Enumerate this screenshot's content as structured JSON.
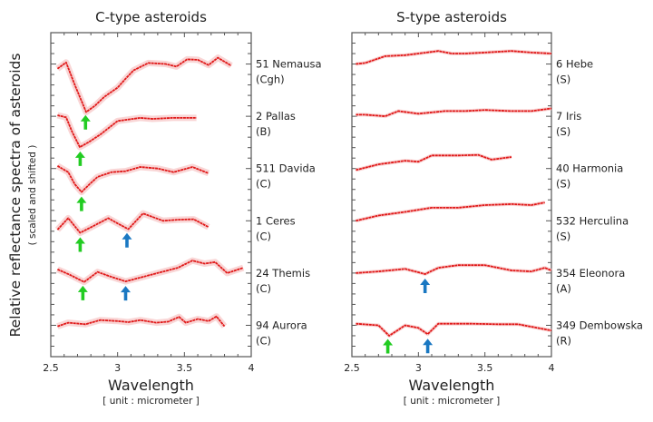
{
  "y_axis": {
    "label": "Relative reflectance spectra of asteroids",
    "sublabel": "( scaled and shifted )"
  },
  "colors": {
    "spectrum": "#e01818",
    "error": "#f7c4c4",
    "arrow_2_7um": "#22cc22",
    "arrow_3_1um": "#1a78c2",
    "axis": "#555555"
  },
  "chart_data": [
    {
      "type": "line",
      "title": "C-type asteroids",
      "xlabel": "Wavelength",
      "xunit": "[ unit : micrometer ]",
      "xlim": [
        2.5,
        4
      ],
      "xticks": [
        "2.5",
        "3",
        "3.5",
        "4"
      ],
      "ylim": [
        -0.6,
        5.6
      ],
      "series": [
        {
          "name": "51 Nemausa",
          "class": "(Cgh)",
          "offset": 5,
          "x": [
            2.55,
            2.615,
            2.68,
            2.765,
            2.83,
            2.9,
            3.0,
            3.06,
            3.12,
            3.23,
            3.36,
            3.44,
            3.52,
            3.6,
            3.68,
            3.75,
            3.85
          ],
          "y": [
            -0.09,
            0.03,
            -0.4,
            -0.92,
            -0.8,
            -0.63,
            -0.45,
            -0.28,
            -0.12,
            0.02,
            0,
            -0.05,
            0.09,
            0.08,
            -0.02,
            0.12,
            -0.03
          ],
          "arrows": [
            {
              "x": 2.76,
              "type": "green"
            }
          ]
        },
        {
          "name": "2 Pallas",
          "class": "(B)",
          "offset": 4,
          "x": [
            2.55,
            2.615,
            2.66,
            2.717,
            2.78,
            2.87,
            3.0,
            3.17,
            3.26,
            3.41,
            3.59
          ],
          "y": [
            0.02,
            -0.02,
            -0.3,
            -0.59,
            -0.5,
            -0.35,
            -0.09,
            -0.03,
            -0.05,
            -0.03,
            -0.03
          ],
          "arrows": [
            {
              "x": 2.72,
              "type": "green"
            }
          ]
        },
        {
          "name": "511 Davida",
          "class": "(C)",
          "offset": 3,
          "x": [
            2.55,
            2.63,
            2.68,
            2.73,
            2.79,
            2.85,
            2.955,
            3.06,
            3.17,
            3.3,
            3.42,
            3.56,
            3.68
          ],
          "y": [
            0.05,
            -0.07,
            -0.3,
            -0.45,
            -0.3,
            -0.16,
            -0.07,
            -0.05,
            0.03,
            0,
            -0.07,
            0.03,
            -0.09
          ],
          "arrows": [
            {
              "x": 2.73,
              "type": "green"
            }
          ]
        },
        {
          "name": "1 Ceres",
          "class": "(C)",
          "offset": 2,
          "x": [
            2.55,
            2.63,
            2.72,
            2.82,
            2.93,
            3.0,
            3.08,
            3.19,
            3.34,
            3.45,
            3.57,
            3.68
          ],
          "y": [
            -0.17,
            0.05,
            -0.23,
            -0.1,
            0.05,
            -0.05,
            -0.16,
            0.14,
            0,
            0.02,
            0.03,
            -0.12
          ],
          "arrows": [
            {
              "x": 2.72,
              "type": "green"
            },
            {
              "x": 3.07,
              "type": "blue"
            }
          ]
        },
        {
          "name": "24 Themis",
          "class": "(C)",
          "offset": 1,
          "x": [
            2.55,
            2.64,
            2.75,
            2.85,
            2.95,
            3.06,
            3.27,
            3.45,
            3.56,
            3.65,
            3.73,
            3.82,
            3.94
          ],
          "y": [
            0.07,
            -0.03,
            -0.17,
            0.02,
            -0.07,
            -0.16,
            -0.02,
            0.1,
            0.24,
            0.18,
            0.21,
            0,
            0.1
          ],
          "arrows": [
            {
              "x": 2.74,
              "type": "green"
            },
            {
              "x": 3.06,
              "type": "blue"
            }
          ]
        },
        {
          "name": "94 Aurora",
          "class": "(C)",
          "offset": 0,
          "x": [
            2.55,
            2.63,
            2.76,
            2.87,
            3.0,
            3.08,
            3.17,
            3.29,
            3.38,
            3.46,
            3.51,
            3.6,
            3.68,
            3.74,
            3.8
          ],
          "y": [
            -0.02,
            0.05,
            0.02,
            0.1,
            0.08,
            0.06,
            0.1,
            0.05,
            0.07,
            0.16,
            0.05,
            0.12,
            0.08,
            0.17,
            -0.02
          ],
          "arrows": []
        }
      ]
    },
    {
      "type": "line",
      "title": "S-type asteroids",
      "xlabel": "Wavelength",
      "xunit": "[ unit : micrometer ]",
      "xlim": [
        2.5,
        4
      ],
      "xticks": [
        "2.5",
        "3",
        "3.5",
        "4"
      ],
      "ylim": [
        -0.6,
        5.6
      ],
      "series": [
        {
          "name": "6 Hebe",
          "class": "(S)",
          "offset": 5,
          "x": [
            2.53,
            2.6,
            2.75,
            2.9,
            3.0,
            3.15,
            3.25,
            3.35,
            3.5,
            3.7,
            3.85,
            4.0
          ],
          "y": [
            0,
            0.02,
            0.15,
            0.17,
            0.2,
            0.25,
            0.2,
            0.2,
            0.22,
            0.25,
            0.22,
            0.2
          ],
          "arrows": []
        },
        {
          "name": "7 Iris",
          "class": "(S)",
          "offset": 4,
          "x": [
            2.53,
            2.6,
            2.75,
            2.85,
            3.0,
            3.2,
            3.35,
            3.5,
            3.7,
            3.85,
            4.0
          ],
          "y": [
            0.03,
            0.03,
            0,
            0.1,
            0.05,
            0.1,
            0.1,
            0.12,
            0.1,
            0.1,
            0.15
          ],
          "arrows": []
        },
        {
          "name": "40 Harmonia",
          "class": "(S)",
          "offset": 3,
          "x": [
            2.53,
            2.7,
            2.9,
            3.0,
            3.1,
            3.3,
            3.45,
            3.55,
            3.7
          ],
          "y": [
            -0.03,
            0.08,
            0.15,
            0.13,
            0.25,
            0.25,
            0.26,
            0.17,
            0.22
          ],
          "arrows": []
        },
        {
          "name": "532 Herculina",
          "class": "(S)",
          "offset": 2,
          "x": [
            2.53,
            2.7,
            2.9,
            3.1,
            3.3,
            3.5,
            3.7,
            3.85,
            3.95
          ],
          "y": [
            0,
            0.1,
            0.17,
            0.25,
            0.25,
            0.3,
            0.32,
            0.3,
            0.35
          ],
          "arrows": []
        },
        {
          "name": "354 Eleonora",
          "class": "(A)",
          "offset": 1,
          "x": [
            2.53,
            2.7,
            2.9,
            3.05,
            3.15,
            3.3,
            3.5,
            3.7,
            3.85,
            3.95,
            4.0
          ],
          "y": [
            0,
            0.03,
            0.08,
            -0.02,
            0.1,
            0.15,
            0.15,
            0.05,
            0.03,
            0.1,
            0.05
          ],
          "arrows": [
            {
              "x": 3.05,
              "type": "blue"
            }
          ]
        },
        {
          "name": "349 Dembowska",
          "class": "(R)",
          "offset": 0,
          "x": [
            2.53,
            2.7,
            2.78,
            2.9,
            3.0,
            3.07,
            3.15,
            3.4,
            3.6,
            3.75,
            4.0
          ],
          "y": [
            0.03,
            0,
            -0.2,
            0,
            -0.05,
            -0.17,
            0.03,
            0.03,
            0.02,
            0.02,
            -0.1
          ],
          "arrows": [
            {
              "x": 2.77,
              "type": "green"
            },
            {
              "x": 3.07,
              "type": "blue"
            }
          ]
        }
      ]
    }
  ]
}
